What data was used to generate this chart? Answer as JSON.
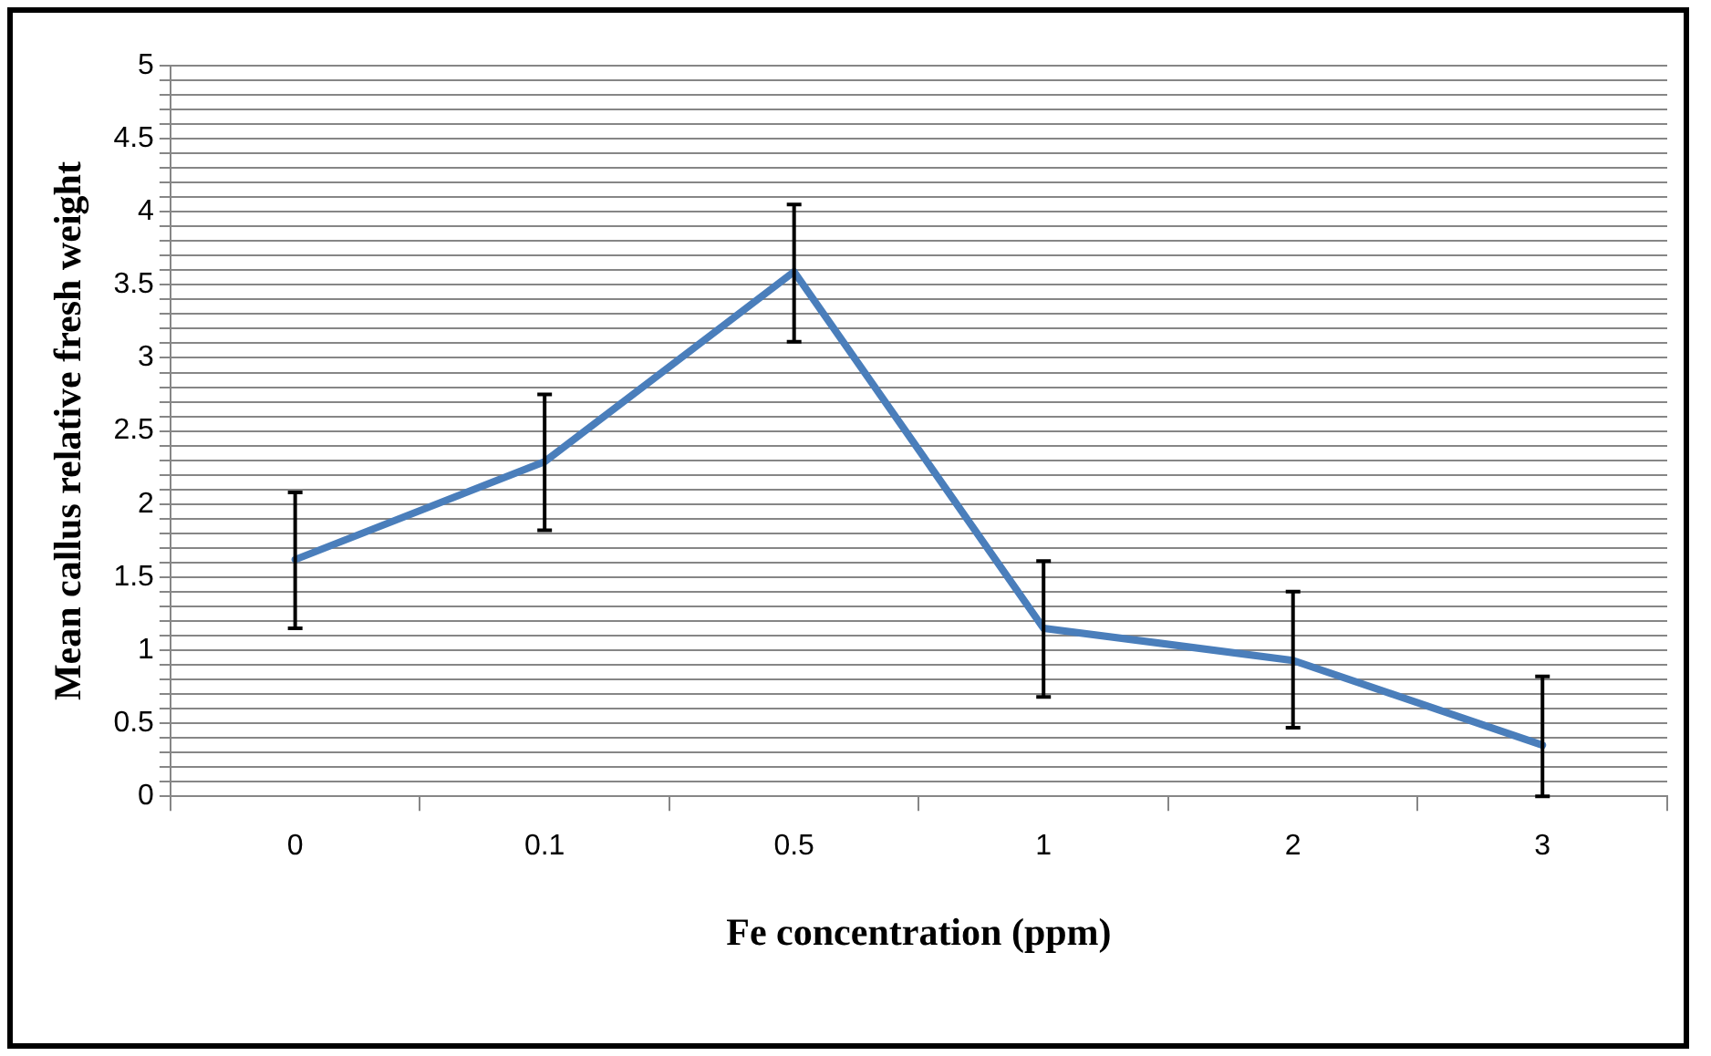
{
  "chart_data": {
    "type": "line",
    "xlabel": "Fe concentration (ppm)",
    "ylabel": "Mean callus relative fresh weight",
    "categories": [
      "0",
      "0.1",
      "0.5",
      "1",
      "2",
      "3"
    ],
    "series": [
      {
        "color": "#4a7ebb",
        "values": [
          1.62,
          2.29,
          3.59,
          1.15,
          0.93,
          0.35
        ],
        "errors": [
          [
            1.15,
            2.08
          ],
          [
            1.82,
            2.75
          ],
          [
            3.11,
            4.05
          ],
          [
            0.68,
            1.61
          ],
          [
            0.47,
            1.4
          ],
          [
            0,
            0.82
          ]
        ]
      }
    ],
    "ylim": [
      0,
      5
    ],
    "yticks": [
      0,
      {
        "value": 0.1,
        "label": null
      },
      {
        "value": 0.2,
        "label": null
      },
      {
        "value": 0.3,
        "label": null
      },
      {
        "value": 0.4,
        "label": null
      },
      0.5,
      {
        "value": 0.6,
        "label": null
      },
      {
        "value": 0.7,
        "label": null
      },
      {
        "value": 0.8,
        "label": null
      },
      {
        "value": 0.9,
        "label": null
      },
      1,
      {
        "value": 1.1,
        "label": null
      },
      {
        "value": 1.2,
        "label": null
      },
      {
        "value": 1.3,
        "label": null
      },
      {
        "value": 1.4,
        "label": null
      },
      1.5,
      {
        "value": 1.6,
        "label": null
      },
      {
        "value": 1.7,
        "label": null
      },
      {
        "value": 1.8,
        "label": null
      },
      {
        "value": 1.9,
        "label": null
      },
      2,
      {
        "value": 2.1,
        "label": null
      },
      {
        "value": 2.2,
        "label": null
      },
      {
        "value": 2.3,
        "label": null
      },
      {
        "value": 2.4,
        "label": null
      },
      2.5,
      {
        "value": 2.6,
        "label": null
      },
      {
        "value": 2.7,
        "label": null
      },
      {
        "value": 2.8,
        "label": null
      },
      {
        "value": 2.9,
        "label": null
      },
      3,
      {
        "value": 3.1,
        "label": null
      },
      {
        "value": 3.2,
        "label": null
      },
      {
        "value": 3.3,
        "label": null
      },
      {
        "value": 3.4,
        "label": null
      },
      3.5,
      {
        "value": 3.6,
        "label": null
      },
      {
        "value": 3.7,
        "label": null
      },
      {
        "value": 3.8,
        "label": null
      },
      {
        "value": 3.9,
        "label": null
      },
      4,
      {
        "value": 4.1,
        "label": null
      },
      {
        "value": 4.2,
        "label": null
      },
      {
        "value": 4.3,
        "label": null
      },
      {
        "value": 4.4,
        "label": null
      },
      4.5,
      {
        "value": 4.6,
        "label": null
      },
      {
        "value": 4.7,
        "label": null
      },
      {
        "value": 4.8,
        "label": null
      },
      {
        "value": 4.9,
        "label": null
      },
      5
    ],
    "grid": "y",
    "marker": "none",
    "legend": false
  }
}
